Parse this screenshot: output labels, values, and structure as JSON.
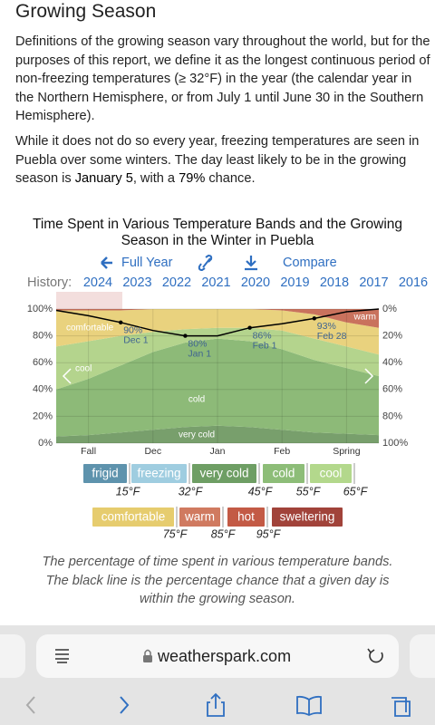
{
  "heading": "Growing Season",
  "paragraph_1": "Definitions of the growing season vary throughout the world, but for the purposes of this report, we define it as the longest continuous period of non-freezing temperatures (≥ 32°F) in the year (the calendar year in the Northern Hemisphere, or from July 1 until June 30 in the Southern Hemisphere).",
  "paragraph_2": [
    {
      "text": "While it does not do so every year, freezing temperatures are seen in Puebla over some winters. The day least likely to be in the growing season is "
    },
    {
      "text": "January 5",
      "bold": true
    },
    {
      "text": ", with a "
    },
    {
      "text": "79%",
      "bold": true
    },
    {
      "text": " chance."
    }
  ],
  "toolbar": [
    "Full Year",
    "Compare"
  ],
  "history": {
    "label": "History:",
    "years": [
      "2024",
      "2023",
      "2022",
      "2021",
      "2020",
      "2019",
      "2018",
      "2017",
      "2016"
    ],
    "selected": "2024"
  },
  "chart_data": {
    "type": "area",
    "stacked": true,
    "title": "Time Spent in Various Temperature Bands and the Growing Season in the Winter in Puebla",
    "categories": [
      null,
      "Fall",
      null,
      "Dec",
      null,
      "Jan",
      null,
      "Feb",
      null,
      "Spring",
      null
    ],
    "series": [
      {
        "name": "very cold",
        "color": "#789f6c",
        "values": [
          5,
          6,
          8,
          10,
          12,
          13,
          12,
          10,
          8,
          7,
          6
        ]
      },
      {
        "name": "cold",
        "color": "#8dba78",
        "values": [
          35,
          42,
          50,
          58,
          63,
          65,
          64,
          60,
          54,
          49,
          44
        ]
      },
      {
        "name": "cool",
        "color": "#b4d48d",
        "values": [
          32,
          28,
          22,
          15,
          10,
          8,
          10,
          14,
          16,
          16,
          16
        ]
      },
      {
        "name": "comfortable",
        "color": "#e9d27e",
        "values": [
          27,
          23,
          19,
          17,
          15,
          14,
          14,
          15,
          18,
          18,
          20
        ]
      },
      {
        "name": "warm",
        "color": "#c9725d",
        "values": [
          1,
          1,
          1,
          0,
          0,
          0,
          0,
          1,
          4,
          10,
          14
        ]
      }
    ],
    "growing_season": {
      "color": "#000000",
      "values": [
        99,
        95,
        90,
        84,
        80,
        80,
        86,
        89,
        93,
        98,
        100
      ]
    },
    "annotations": [
      {
        "value": 90,
        "label": "90%",
        "date": "Dec 1"
      },
      {
        "value": 80,
        "label": "80%",
        "date": "Jan 1"
      },
      {
        "value": 86,
        "label": "86%",
        "date": "Feb 1"
      },
      {
        "value": 93,
        "label": "93%",
        "date": "Feb 28"
      }
    ],
    "ylim": [
      0,
      100
    ],
    "yticks": [
      {
        "value": 0,
        "label": "0%"
      },
      {
        "value": 20,
        "label": "20%"
      },
      {
        "value": 40,
        "label": "40%"
      },
      {
        "value": 60,
        "label": "60%"
      },
      {
        "value": 80,
        "label": "80%"
      },
      {
        "value": 100,
        "label": "100%"
      }
    ],
    "y2lim": [
      100,
      0
    ],
    "y2ticks": [
      {
        "value": 0,
        "label": "0%"
      },
      {
        "value": 20,
        "label": "20%"
      },
      {
        "value": 40,
        "label": "40%"
      },
      {
        "value": 60,
        "label": "60%"
      },
      {
        "value": 80,
        "label": "80%"
      },
      {
        "value": 100,
        "label": "100%"
      }
    ],
    "grid": true
  },
  "legend": {
    "rows": [
      [
        {
          "name": "frigid",
          "color": "#5e93ad"
        },
        {
          "name": "freezing",
          "color": "#9fcde0"
        },
        {
          "name": "very cold",
          "color": "#6e9e64"
        },
        {
          "name": "cold",
          "color": "#8dbd78"
        },
        {
          "name": "cool",
          "color": "#b3d88c"
        }
      ],
      [
        {
          "name": "comfortable",
          "color": "#e6cc6e"
        },
        {
          "name": "warm",
          "color": "#d07a60"
        },
        {
          "name": "hot",
          "color": "#c35a45"
        },
        {
          "name": "sweltering",
          "color": "#a1433a"
        }
      ]
    ],
    "thresholds": [
      [
        "15°F",
        "32°F",
        "45°F",
        "55°F",
        "65°F"
      ],
      [
        "75°F",
        "85°F",
        "95°F"
      ]
    ]
  },
  "caption": "The percentage of time spent in various temperature bands. The black line is the percentage chance that a given day is within the growing season.",
  "browser": {
    "url": "weatherspark.com"
  }
}
